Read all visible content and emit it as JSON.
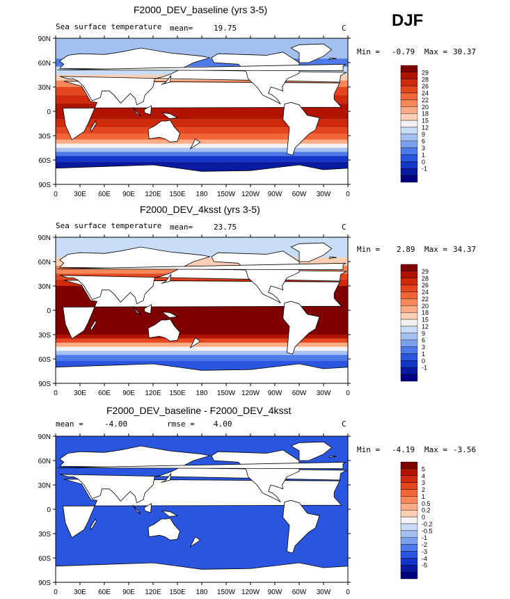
{
  "season": "DJF",
  "panels": [
    {
      "title": "F2000_DEV_baseline (yrs 3-5)",
      "left_label": "Sea surface temperature",
      "mean_label": "mean=",
      "mean_value": "19.75",
      "units": "C",
      "min_label": "Min =",
      "min_value": "-0.79",
      "max_label": "Max =",
      "max_value": "30.37",
      "colorbar": {
        "labels": [
          "29",
          "28",
          "26",
          "24",
          "22",
          "20",
          "18",
          "15",
          "12",
          "9",
          "6",
          "3",
          "1",
          "0",
          "-1"
        ],
        "colors": [
          "#7f0000",
          "#b01400",
          "#cd2b0c",
          "#e4461f",
          "#f26536",
          "#f8875a",
          "#fbab85",
          "#fdd0b5",
          "#f2f2f2",
          "#c9dcf6",
          "#a3c0f1",
          "#7aa0ee",
          "#4f7bea",
          "#2a55df",
          "#1236c8",
          "#0a1aa0",
          "#000080"
        ]
      },
      "map_scheme": "baseline"
    },
    {
      "title": "F2000_DEV_4ksst (yrs 3-5)",
      "left_label": "Sea surface temperature",
      "mean_label": "mean=",
      "mean_value": "23.75",
      "units": "C",
      "min_label": "Min =",
      "min_value": "2.89",
      "max_label": "Max =",
      "max_value": "34.37",
      "colorbar": {
        "labels": [
          "29",
          "28",
          "26",
          "24",
          "22",
          "20",
          "18",
          "15",
          "12",
          "9",
          "6",
          "3",
          "1",
          "0",
          "-1"
        ],
        "colors": [
          "#7f0000",
          "#b01400",
          "#cd2b0c",
          "#e4461f",
          "#f26536",
          "#f8875a",
          "#fbab85",
          "#fdd0b5",
          "#f2f2f2",
          "#c9dcf6",
          "#a3c0f1",
          "#7aa0ee",
          "#4f7bea",
          "#2a55df",
          "#1236c8",
          "#0a1aa0",
          "#000080"
        ]
      },
      "map_scheme": "warm"
    },
    {
      "title": "F2000_DEV_baseline - F2000_DEV_4ksst",
      "left_label": "mean =",
      "mean_label": "",
      "mean_value": "-4.00",
      "rmse_label": "rmse =",
      "rmse_value": "4.00",
      "units": "C",
      "min_label": "Min =",
      "min_value": "-4.19",
      "max_label": "Max =",
      "max_value": "-3.56",
      "colorbar": {
        "labels": [
          "5",
          "4",
          "3",
          "2",
          "1",
          "0.5",
          "0.2",
          "0",
          "-0.2",
          "-0.5",
          "-1",
          "-2",
          "-3",
          "-4",
          "-5"
        ],
        "colors": [
          "#7f0000",
          "#b01400",
          "#cd2b0c",
          "#e4461f",
          "#f26536",
          "#f8875a",
          "#fbab85",
          "#fdd0b5",
          "#f2f2f2",
          "#c9dcf6",
          "#a3c0f1",
          "#7aa0ee",
          "#4f7bea",
          "#2a55df",
          "#1236c8",
          "#0a1aa0",
          "#000080"
        ]
      },
      "map_scheme": "diff"
    }
  ],
  "lat_ticks": [
    "90N",
    "60N",
    "30N",
    "0",
    "30S",
    "60S",
    "90S"
  ],
  "lon_ticks": [
    "0",
    "30E",
    "60E",
    "90E",
    "120E",
    "150E",
    "180",
    "150W",
    "120W",
    "90W",
    "60W",
    "30W",
    "0"
  ]
}
